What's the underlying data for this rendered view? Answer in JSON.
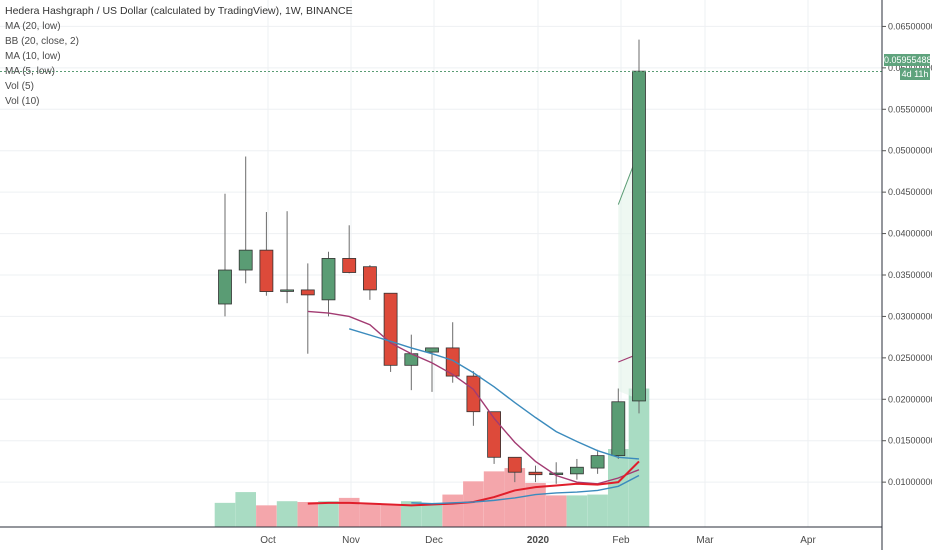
{
  "legend": {
    "title": "Hedera Hashgraph / US Dollar (calculated by TradingView), 1W, BINANCE",
    "lines": [
      "MA (20, low)",
      "BB (20, close, 2)",
      "MA (10, low)",
      "MA (5, low)",
      "Vol (5)",
      "Vol (10)"
    ]
  },
  "price_badge": "0.05955488",
  "countdown_badge": "4d 11h",
  "colors": {
    "up": "#5a9c74",
    "down": "#dd4a3a",
    "ma20": "#3b8bbd",
    "ma10": "#a23b72",
    "ma5": "#e01e2b",
    "vol_up": "#a9dcc3",
    "vol_down": "#f4a6ab"
  },
  "chart_data": {
    "type": "candlestick",
    "title": "Hedera Hashgraph / US Dollar (calculated by TradingView), 1W, BINANCE",
    "xlabel": "",
    "ylabel": "",
    "ylim": [
      0.0035,
      0.0665
    ],
    "x_ticks": [
      "Oct",
      "Nov",
      "Dec",
      "2020",
      "Feb",
      "Mar",
      "Apr"
    ],
    "y_ticks": [
      "0.06500000",
      "0.06000000",
      "0.05500000",
      "0.05000000",
      "0.04500000",
      "0.04000000",
      "0.03500000",
      "0.03000000",
      "0.02500000",
      "0.02000000",
      "0.01500000",
      "0.01000000"
    ],
    "last_price": "0.05955488",
    "grid": true,
    "candles": [
      {
        "o": 0.0315,
        "h": 0.0448,
        "l": 0.03,
        "c": 0.0356
      },
      {
        "o": 0.0356,
        "h": 0.0493,
        "l": 0.034,
        "c": 0.038
      },
      {
        "o": 0.038,
        "h": 0.0426,
        "l": 0.0325,
        "c": 0.033
      },
      {
        "o": 0.0332,
        "h": 0.0427,
        "l": 0.0316,
        "c": 0.0332
      },
      {
        "o": 0.0332,
        "h": 0.0364,
        "l": 0.0255,
        "c": 0.0326
      },
      {
        "o": 0.032,
        "h": 0.0378,
        "l": 0.03,
        "c": 0.037
      },
      {
        "o": 0.037,
        "h": 0.041,
        "l": 0.0352,
        "c": 0.0353
      },
      {
        "o": 0.036,
        "h": 0.0362,
        "l": 0.032,
        "c": 0.0332
      },
      {
        "o": 0.0328,
        "h": 0.0328,
        "l": 0.0233,
        "c": 0.0241
      },
      {
        "o": 0.0241,
        "h": 0.0278,
        "l": 0.0211,
        "c": 0.0255
      },
      {
        "o": 0.0257,
        "h": 0.0262,
        "l": 0.0209,
        "c": 0.0262
      },
      {
        "o": 0.0262,
        "h": 0.0293,
        "l": 0.022,
        "c": 0.0228
      },
      {
        "o": 0.0228,
        "h": 0.0234,
        "l": 0.0168,
        "c": 0.0185
      },
      {
        "o": 0.0185,
        "h": 0.0185,
        "l": 0.0122,
        "c": 0.013
      },
      {
        "o": 0.013,
        "h": 0.013,
        "l": 0.01,
        "c": 0.0112
      },
      {
        "o": 0.0112,
        "h": 0.012,
        "l": 0.01,
        "c": 0.0109
      },
      {
        "o": 0.011,
        "h": 0.0124,
        "l": 0.0098,
        "c": 0.0111
      },
      {
        "o": 0.011,
        "h": 0.0128,
        "l": 0.0103,
        "c": 0.0118
      },
      {
        "o": 0.0117,
        "h": 0.0139,
        "l": 0.011,
        "c": 0.0132
      },
      {
        "o": 0.0132,
        "h": 0.0213,
        "l": 0.0128,
        "c": 0.0197
      },
      {
        "o": 0.0198,
        "h": 0.0634,
        "l": 0.0183,
        "c": 0.0596
      }
    ],
    "volume": [
      {
        "v": 0.0075,
        "up": true
      },
      {
        "v": 0.0088,
        "up": true
      },
      {
        "v": 0.0072,
        "up": false
      },
      {
        "v": 0.0077,
        "up": true
      },
      {
        "v": 0.0076,
        "up": false
      },
      {
        "v": 0.0077,
        "up": true
      },
      {
        "v": 0.0081,
        "up": false
      },
      {
        "v": 0.0073,
        "up": false
      },
      {
        "v": 0.0073,
        "up": false
      },
      {
        "v": 0.0077,
        "up": true
      },
      {
        "v": 0.0075,
        "up": true
      },
      {
        "v": 0.0085,
        "up": false
      },
      {
        "v": 0.0101,
        "up": false
      },
      {
        "v": 0.0113,
        "up": false
      },
      {
        "v": 0.0117,
        "up": false
      },
      {
        "v": 0.0099,
        "up": false
      },
      {
        "v": 0.0084,
        "up": false
      },
      {
        "v": 0.0084,
        "up": true
      },
      {
        "v": 0.0085,
        "up": true
      },
      {
        "v": 0.014,
        "up": true
      },
      {
        "v": 0.0213,
        "up": true
      }
    ],
    "series": [
      {
        "key": "ma5",
        "points": [
          [
            4,
            0.0306
          ],
          [
            5,
            0.0304
          ],
          [
            6,
            0.03
          ],
          [
            7,
            0.029
          ],
          [
            8,
            0.0268
          ],
          [
            9,
            0.0255
          ],
          [
            10,
            0.0244
          ],
          [
            11,
            0.023
          ],
          [
            12,
            0.0212
          ],
          [
            13,
            0.0177
          ],
          [
            14,
            0.0148
          ],
          [
            15,
            0.0125
          ],
          [
            16,
            0.0108
          ],
          [
            17,
            0.01
          ],
          [
            18,
            0.0098
          ],
          [
            19,
            0.0105
          ],
          [
            20,
            0.0115
          ]
        ]
      },
      {
        "key": "ma10",
        "points": [
          [
            6,
            0.0285
          ],
          [
            8,
            0.027
          ],
          [
            9,
            0.0262
          ],
          [
            10,
            0.0255
          ],
          [
            11,
            0.0247
          ],
          [
            12,
            0.0232
          ],
          [
            13,
            0.0215
          ],
          [
            14,
            0.0196
          ],
          [
            15,
            0.0178
          ],
          [
            16,
            0.0161
          ],
          [
            17,
            0.0149
          ],
          [
            18,
            0.0138
          ],
          [
            19,
            0.013
          ],
          [
            20,
            0.0128
          ]
        ]
      },
      {
        "key": "ma5_red",
        "points": [
          [
            4,
            0.0074
          ],
          [
            5,
            0.0075
          ],
          [
            6,
            0.0075
          ],
          [
            7,
            0.0074
          ],
          [
            8,
            0.0073
          ],
          [
            9,
            0.0072
          ],
          [
            10,
            0.0073
          ],
          [
            11,
            0.0074
          ],
          [
            12,
            0.0076
          ],
          [
            13,
            0.0082
          ],
          [
            14,
            0.009
          ],
          [
            15,
            0.0094
          ],
          [
            16,
            0.0096
          ],
          [
            17,
            0.0098
          ],
          [
            18,
            0.0097
          ],
          [
            19,
            0.01
          ],
          [
            20,
            0.0125
          ]
        ]
      },
      {
        "key": "ma10_blue",
        "points": [
          [
            9,
            0.0075
          ],
          [
            10,
            0.0074
          ],
          [
            11,
            0.0075
          ],
          [
            12,
            0.0076
          ],
          [
            13,
            0.0078
          ],
          [
            14,
            0.0081
          ],
          [
            15,
            0.0085
          ],
          [
            16,
            0.0087
          ],
          [
            17,
            0.0088
          ],
          [
            18,
            0.009
          ],
          [
            19,
            0.0095
          ],
          [
            20,
            0.0108
          ]
        ]
      }
    ],
    "bb": {
      "upper": [
        [
          19,
          0.0435
        ],
        [
          20,
          0.05
        ]
      ],
      "middle": [
        [
          19,
          0.0245
        ],
        [
          20,
          0.0255
        ]
      ],
      "lower": [
        [
          19,
          0.021
        ],
        [
          20,
          0.02
        ]
      ]
    }
  }
}
